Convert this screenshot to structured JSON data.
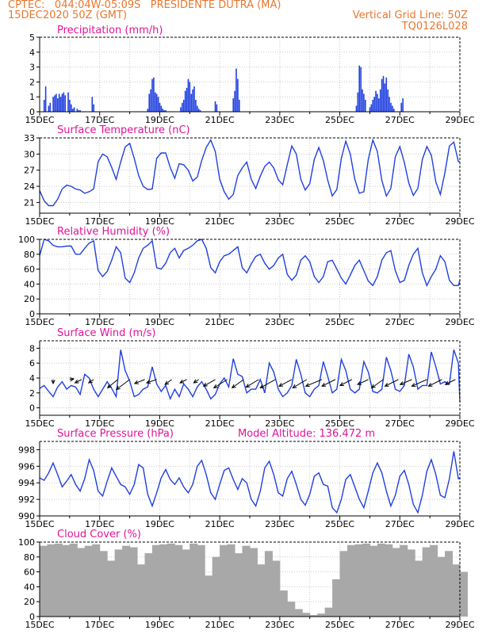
{
  "header": {
    "line1": "CPTEC:   044:04W-05:09S   PRESIDENTE DUTRA (MA)",
    "line2": "15DEC2020 50Z (GMT)",
    "grid_note": "Vertical Grid Line: 50Z",
    "code": "TQ0126L028"
  },
  "colors": {
    "header": "#e8772e",
    "title": "#e0139a",
    "series": "#2040e0",
    "cloud": "#a8a8a8"
  },
  "chart_data": [
    {
      "id": "precip",
      "type": "bar",
      "title": "Precipitation (mm/h)",
      "ylim": [
        0,
        5
      ],
      "yticks": [
        "0",
        "1",
        "2",
        "3",
        "4",
        "5"
      ],
      "xlabels": [
        "15DEC",
        "17DEC",
        "19DEC",
        "21DEC",
        "23DEC",
        "25DEC",
        "27DEC",
        "29DEC"
      ],
      "x_unit": "days since 15DEC 00Z",
      "x": [
        0.15,
        0.2,
        0.3,
        0.35,
        0.45,
        0.5,
        0.55,
        0.6,
        0.65,
        0.7,
        0.75,
        0.8,
        0.85,
        0.95,
        1.0,
        1.05,
        1.1,
        1.15,
        1.25,
        1.3,
        1.35,
        1.75,
        1.8,
        3.6,
        3.65,
        3.7,
        3.75,
        3.8,
        3.85,
        3.9,
        3.95,
        4.0,
        4.05,
        4.1,
        4.15,
        4.2,
        4.7,
        4.75,
        4.8,
        4.85,
        4.9,
        4.95,
        5.0,
        5.05,
        5.1,
        5.15,
        5.2,
        5.25,
        5.3,
        5.35,
        5.85,
        5.9,
        6.45,
        6.5,
        6.55,
        6.6,
        6.65,
        10.55,
        10.6,
        10.65,
        10.7,
        10.75,
        10.8,
        10.85,
        11.0,
        11.05,
        11.1,
        11.15,
        11.2,
        11.25,
        11.3,
        11.35,
        11.4,
        11.45,
        11.5,
        11.55,
        11.6,
        11.65,
        11.7,
        11.75,
        11.8,
        12.05,
        12.1
      ],
      "values": [
        0.8,
        1.7,
        0.4,
        0.6,
        1.0,
        1.1,
        1.2,
        0.9,
        1.2,
        1.0,
        1.2,
        1.3,
        1.1,
        1.3,
        0.8,
        0.5,
        0.2,
        0.3,
        0.2,
        0.1,
        0.1,
        1.0,
        0.5,
        0.2,
        1.2,
        1.5,
        2.2,
        2.3,
        1.3,
        1.2,
        1.0,
        0.6,
        0.4,
        0.2,
        0.1,
        0.1,
        0.3,
        0.6,
        0.8,
        1.4,
        1.6,
        2.2,
        2.0,
        1.2,
        1.5,
        1.7,
        0.8,
        0.4,
        0.2,
        0.1,
        0.7,
        0.5,
        0.9,
        1.4,
        2.9,
        2.2,
        0.8,
        0.4,
        1.3,
        3.1,
        3.0,
        1.5,
        1.2,
        0.8,
        0.3,
        0.5,
        0.8,
        1.0,
        1.4,
        1.2,
        0.9,
        1.5,
        2.2,
        2.4,
        1.9,
        2.3,
        1.5,
        1.0,
        0.6,
        0.4,
        0.2,
        0.6,
        0.9
      ]
    },
    {
      "id": "temp",
      "type": "line",
      "title": "Surface Temperature (nC)",
      "ylim": [
        19,
        33
      ],
      "yticks": [
        "21",
        "24",
        "27",
        "30",
        "33"
      ],
      "xlabels": [
        "15DEC",
        "17DEC",
        "19DEC",
        "21DEC",
        "23DEC",
        "25DEC",
        "27DEC",
        "29DEC"
      ],
      "x_unit": "days since 15DEC 00Z",
      "x": [
        0.0,
        0.15,
        0.3,
        0.45,
        0.6,
        0.75,
        0.9,
        1.05,
        1.2,
        1.35,
        1.5,
        1.65,
        1.8,
        1.95,
        2.1,
        2.25,
        2.4,
        2.55,
        2.7,
        2.85,
        3.0,
        3.15,
        3.3,
        3.45,
        3.6,
        3.75,
        3.9,
        4.05,
        4.2,
        4.35,
        4.5,
        4.65,
        4.8,
        4.95,
        5.1,
        5.25,
        5.4,
        5.55,
        5.7,
        5.85,
        6.0,
        6.15,
        6.3,
        6.45,
        6.6,
        6.75,
        6.9,
        7.05,
        7.2,
        7.35,
        7.5,
        7.65,
        7.8,
        7.95,
        8.1,
        8.25,
        8.4,
        8.55,
        8.7,
        8.85,
        9.0,
        9.15,
        9.3,
        9.45,
        9.6,
        9.75,
        9.9,
        10.05,
        10.2,
        10.35,
        10.5,
        10.65,
        10.8,
        10.95,
        11.1,
        11.25,
        11.4,
        11.55,
        11.7,
        11.85,
        12.0,
        12.15,
        12.3,
        12.45,
        12.6,
        12.75,
        12.9,
        13.05,
        13.2,
        13.35,
        13.5,
        13.65,
        13.8,
        13.95,
        14.0
      ],
      "values": [
        23.2,
        21.3,
        20.4,
        20.4,
        21.6,
        23.5,
        24.2,
        24.0,
        23.5,
        23.3,
        22.7,
        23.0,
        23.5,
        28.6,
        30.0,
        29.5,
        27.5,
        25.3,
        28.5,
        31.3,
        32.0,
        29.2,
        26.0,
        24.0,
        23.4,
        23.5,
        29.2,
        30.2,
        30.2,
        27.5,
        25.5,
        28.2,
        28.0,
        27.0,
        25.0,
        25.7,
        28.8,
        31.2,
        32.6,
        30.5,
        25.3,
        23.0,
        21.6,
        22.5,
        26.0,
        27.4,
        28.5,
        25.3,
        23.6,
        25.9,
        27.7,
        28.5,
        27.4,
        25.2,
        24.3,
        28.0,
        31.5,
        30.0,
        25.3,
        23.3,
        24.5,
        29.0,
        31.2,
        28.8,
        25.1,
        22.2,
        23.4,
        29.2,
        32.4,
        30.0,
        25.3,
        22.7,
        23.0,
        29.0,
        32.6,
        30.5,
        25.1,
        22.2,
        23.6,
        29.5,
        31.4,
        28.4,
        24.6,
        22.3,
        23.6,
        29.0,
        31.4,
        29.8,
        24.8,
        22.5,
        26.5,
        31.5,
        32.2,
        28.6,
        28.6
      ]
    },
    {
      "id": "rh",
      "type": "line",
      "title": "Relative Humidity (%)",
      "ylim": [
        0,
        100
      ],
      "yticks": [
        "0",
        "20",
        "40",
        "60",
        "80",
        "100"
      ],
      "xlabels": [
        "15DEC",
        "17DEC",
        "19DEC",
        "21DEC",
        "23DEC",
        "25DEC",
        "27DEC",
        "29DEC"
      ],
      "x_unit": "days since 15DEC 00Z",
      "x": [
        0.0,
        0.15,
        0.3,
        0.45,
        0.6,
        0.75,
        0.9,
        1.05,
        1.2,
        1.35,
        1.5,
        1.65,
        1.8,
        1.95,
        2.1,
        2.25,
        2.4,
        2.55,
        2.7,
        2.85,
        3.0,
        3.15,
        3.3,
        3.45,
        3.6,
        3.75,
        3.9,
        4.05,
        4.2,
        4.35,
        4.5,
        4.65,
        4.8,
        4.95,
        5.1,
        5.25,
        5.4,
        5.55,
        5.7,
        5.85,
        6.0,
        6.15,
        6.3,
        6.45,
        6.6,
        6.75,
        6.9,
        7.05,
        7.2,
        7.35,
        7.5,
        7.65,
        7.8,
        7.95,
        8.1,
        8.25,
        8.4,
        8.55,
        8.7,
        8.85,
        9.0,
        9.15,
        9.3,
        9.45,
        9.6,
        9.75,
        9.9,
        10.05,
        10.2,
        10.35,
        10.5,
        10.65,
        10.8,
        10.95,
        11.1,
        11.25,
        11.4,
        11.55,
        11.7,
        11.85,
        12.0,
        12.15,
        12.3,
        12.45,
        12.6,
        12.75,
        12.9,
        13.05,
        13.2,
        13.35,
        13.5,
        13.65,
        13.8,
        13.95,
        14.0
      ],
      "values": [
        78,
        100,
        98,
        92,
        90,
        90,
        91,
        91,
        80,
        80,
        88,
        95,
        98,
        58,
        50,
        57,
        72,
        90,
        82,
        48,
        42,
        55,
        75,
        88,
        92,
        98,
        62,
        60,
        68,
        82,
        88,
        75,
        85,
        88,
        92,
        98,
        100,
        88,
        62,
        55,
        70,
        78,
        80,
        85,
        90,
        62,
        55,
        67,
        77,
        80,
        68,
        60,
        65,
        75,
        80,
        53,
        45,
        52,
        72,
        78,
        70,
        50,
        42,
        50,
        70,
        72,
        60,
        48,
        40,
        52,
        65,
        72,
        58,
        44,
        38,
        50,
        72,
        82,
        85,
        58,
        42,
        45,
        65,
        80,
        88,
        55,
        38,
        50,
        60,
        78,
        70,
        45,
        38,
        38,
        45
      ]
    },
    {
      "id": "wind",
      "type": "line",
      "title": "Surface Wind (m/s)",
      "ylim": [
        -1,
        9
      ],
      "yticks": [
        "0",
        "2",
        "4",
        "6",
        "8"
      ],
      "xlabels": [
        "15DEC",
        "17DEC",
        "19DEC",
        "21DEC",
        "23DEC",
        "25DEC",
        "27DEC",
        "29DEC"
      ],
      "x_unit": "days since 15DEC 00Z",
      "x": [
        0.0,
        0.15,
        0.3,
        0.45,
        0.6,
        0.75,
        0.9,
        1.05,
        1.2,
        1.35,
        1.5,
        1.65,
        1.8,
        1.95,
        2.1,
        2.25,
        2.4,
        2.55,
        2.7,
        2.85,
        3.0,
        3.15,
        3.3,
        3.45,
        3.6,
        3.75,
        3.9,
        4.05,
        4.2,
        4.35,
        4.5,
        4.65,
        4.8,
        4.95,
        5.1,
        5.25,
        5.4,
        5.55,
        5.7,
        5.85,
        6.0,
        6.15,
        6.3,
        6.45,
        6.6,
        6.75,
        6.9,
        7.05,
        7.2,
        7.35,
        7.5,
        7.65,
        7.8,
        7.95,
        8.1,
        8.25,
        8.4,
        8.55,
        8.7,
        8.85,
        9.0,
        9.15,
        9.3,
        9.45,
        9.6,
        9.75,
        9.9,
        10.05,
        10.2,
        10.35,
        10.5,
        10.65,
        10.8,
        10.95,
        11.1,
        11.25,
        11.4,
        11.55,
        11.7,
        11.85,
        12.0,
        12.15,
        12.3,
        12.45,
        12.6,
        12.75,
        12.9,
        13.05,
        13.2,
        13.35,
        13.5,
        13.65,
        13.8,
        13.95,
        14.0
      ],
      "values": [
        2.6,
        3.0,
        2.2,
        1.5,
        2.8,
        3.5,
        2.5,
        3.0,
        2.8,
        1.8,
        4.5,
        4.0,
        2.5,
        1.5,
        2.5,
        3.5,
        2.6,
        1.5,
        7.8,
        5.0,
        3.6,
        1.5,
        1.8,
        2.5,
        2.8,
        5.5,
        3.2,
        2.2,
        3.0,
        1.2,
        2.5,
        1.5,
        3.2,
        2.5,
        1.5,
        2.8,
        3.5,
        2.5,
        1.2,
        1.8,
        3.2,
        4.0,
        2.8,
        6.6,
        4.5,
        4.2,
        2.0,
        2.5,
        2.5,
        3.8,
        2.0,
        6.0,
        4.8,
        2.5,
        1.5,
        2.0,
        3.0,
        6.5,
        4.5,
        2.0,
        1.5,
        2.5,
        3.0,
        6.2,
        4.2,
        2.0,
        2.5,
        6.5,
        5.0,
        2.5,
        2.0,
        2.5,
        6.2,
        4.8,
        2.2,
        2.0,
        2.5,
        6.8,
        5.0,
        2.5,
        2.2,
        3.0,
        7.2,
        5.5,
        2.5,
        3.0,
        3.0,
        7.5,
        5.5,
        3.2,
        3.5,
        3.2,
        7.8,
        6.0,
        0.8
      ],
      "arrows_x": [
        0.45,
        1.0,
        1.4,
        1.8,
        2.6,
        3.0,
        3.5,
        3.9,
        4.4,
        4.9,
        5.3,
        5.85,
        6.25,
        6.8,
        7.3,
        7.85,
        8.4,
        8.9,
        9.4,
        9.85,
        10.4,
        10.95,
        11.45,
        11.95,
        12.4,
        12.9,
        13.4,
        13.85
      ],
      "arrows_u": [
        0.0,
        1.2,
        -2.0,
        -1.5,
        -3.0,
        -4.0,
        -3.0,
        -3.0,
        -2.0,
        -2.0,
        -1.5,
        -3.5,
        -4.0,
        -3.5,
        -3.8,
        -4.5,
        -3.8,
        -4.2,
        -4.8,
        -4.0,
        -3.5,
        -3.2,
        -3.5,
        -4.0,
        -3.5,
        -4.5,
        -4.0,
        -3.0
      ],
      "arrows_v": [
        -1.2,
        0.2,
        -1.0,
        -1.0,
        -2.5,
        -3.0,
        -1.2,
        -1.0,
        -1.5,
        -1.0,
        -1.0,
        -2.0,
        -2.5,
        -2.5,
        -2.3,
        -2.5,
        -2.0,
        -2.5,
        -2.0,
        -2.0,
        -1.8,
        -1.5,
        -2.5,
        -2.0,
        -1.5,
        -2.0,
        -2.0,
        -1.5
      ]
    },
    {
      "id": "pressure",
      "type": "line",
      "title": "Surface Pressure (hPa)",
      "note": "Model Altitude: 136.472 m",
      "ylim": [
        990,
        999
      ],
      "yticks": [
        "990",
        "992",
        "994",
        "996",
        "998"
      ],
      "xlabels": [
        "15DEC",
        "17DEC",
        "19DEC",
        "21DEC",
        "23DEC",
        "25DEC",
        "27DEC",
        "29DEC"
      ],
      "x_unit": "days since 15DEC 00Z",
      "x": [
        0.0,
        0.15,
        0.3,
        0.45,
        0.6,
        0.75,
        0.9,
        1.05,
        1.2,
        1.35,
        1.5,
        1.65,
        1.8,
        1.95,
        2.1,
        2.25,
        2.4,
        2.55,
        2.7,
        2.85,
        3.0,
        3.15,
        3.3,
        3.45,
        3.6,
        3.75,
        3.9,
        4.05,
        4.2,
        4.35,
        4.5,
        4.65,
        4.8,
        4.95,
        5.1,
        5.25,
        5.4,
        5.55,
        5.7,
        5.85,
        6.0,
        6.15,
        6.3,
        6.45,
        6.6,
        6.75,
        6.9,
        7.05,
        7.2,
        7.35,
        7.5,
        7.65,
        7.8,
        7.95,
        8.1,
        8.25,
        8.4,
        8.55,
        8.7,
        8.85,
        9.0,
        9.15,
        9.3,
        9.45,
        9.6,
        9.75,
        9.9,
        10.05,
        10.2,
        10.35,
        10.5,
        10.65,
        10.8,
        10.95,
        11.1,
        11.25,
        11.4,
        11.55,
        11.7,
        11.85,
        12.0,
        12.15,
        12.3,
        12.45,
        12.6,
        12.75,
        12.9,
        13.05,
        13.2,
        13.35,
        13.5,
        13.65,
        13.8,
        13.95,
        14.0
      ],
      "values": [
        994.6,
        994.3,
        995.2,
        996.4,
        995.0,
        993.5,
        994.2,
        995.0,
        993.8,
        993.0,
        994.5,
        996.8,
        995.5,
        993.0,
        992.4,
        994.2,
        995.8,
        994.8,
        993.8,
        993.5,
        992.6,
        993.8,
        996.2,
        995.8,
        992.6,
        991.2,
        992.8,
        994.6,
        995.6,
        994.4,
        993.8,
        994.6,
        993.5,
        992.8,
        993.8,
        996.0,
        996.7,
        995.0,
        992.8,
        992.0,
        993.8,
        995.5,
        995.8,
        994.4,
        993.2,
        994.5,
        994.0,
        992.0,
        991.2,
        993.0,
        995.8,
        996.6,
        995.0,
        992.8,
        992.4,
        994.5,
        995.4,
        993.8,
        992.0,
        991.3,
        992.6,
        994.8,
        995.2,
        993.8,
        993.6,
        991.0,
        990.4,
        992.0,
        994.4,
        995.0,
        993.5,
        992.0,
        991.0,
        993.0,
        995.2,
        996.4,
        995.2,
        993.0,
        991.2,
        992.5,
        994.8,
        995.5,
        993.8,
        991.4,
        990.4,
        992.5,
        995.4,
        996.8,
        995.0,
        992.5,
        992.2,
        994.5,
        997.8,
        994.5,
        994.6
      ]
    },
    {
      "id": "cloud",
      "type": "area",
      "title": "Cloud Cover (%)",
      "ylim": [
        0,
        100
      ],
      "yticks": [
        "0",
        "20",
        "40",
        "60",
        "80",
        "100"
      ],
      "xlabels": [
        "15DEC",
        "17DEC",
        "19DEC",
        "21DEC",
        "23DEC",
        "25DEC",
        "27DEC",
        "29DEC"
      ],
      "x_unit": "days since 15DEC 00Z",
      "x": [
        0.0,
        0.25,
        0.5,
        0.75,
        1.0,
        1.25,
        1.5,
        1.75,
        2.0,
        2.25,
        2.5,
        2.75,
        3.0,
        3.25,
        3.5,
        3.75,
        4.0,
        4.25,
        4.5,
        4.75,
        5.0,
        5.25,
        5.5,
        5.75,
        6.0,
        6.25,
        6.5,
        6.75,
        7.0,
        7.25,
        7.5,
        7.75,
        8.0,
        8.25,
        8.5,
        8.75,
        9.0,
        9.25,
        9.5,
        9.75,
        10.0,
        10.25,
        10.5,
        10.75,
        11.0,
        11.25,
        11.5,
        11.75,
        12.0,
        12.25,
        12.5,
        12.75,
        13.0,
        13.25,
        13.5,
        13.75,
        14.0
      ],
      "values": [
        95,
        97,
        98,
        96,
        98,
        92,
        95,
        97,
        88,
        75,
        90,
        95,
        93,
        70,
        85,
        96,
        97,
        98,
        96,
        90,
        98,
        96,
        55,
        80,
        96,
        97,
        85,
        95,
        92,
        70,
        88,
        75,
        35,
        20,
        10,
        5,
        2,
        4,
        12,
        50,
        88,
        96,
        97,
        98,
        95,
        98,
        97,
        92,
        96,
        90,
        75,
        93,
        96,
        80,
        88,
        70,
        60
      ]
    }
  ]
}
